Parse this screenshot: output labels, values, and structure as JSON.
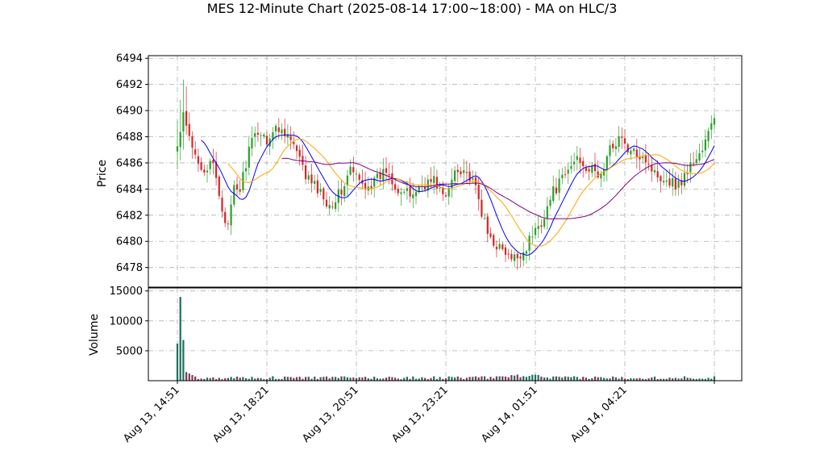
{
  "chart_data": {
    "type": "candlestick",
    "title": "MES 12-Minute Chart (2025-08-14 17:00~18:00) - MA on HLC/3",
    "price_panel": {
      "ylabel": "Price",
      "ylim": [
        6476.5,
        6494.2
      ],
      "yticks": [
        6478,
        6480,
        6482,
        6484,
        6486,
        6488,
        6490,
        6492,
        6494
      ],
      "grid": true
    },
    "volume_panel": {
      "ylabel": "Volume",
      "ylim": [
        0,
        15500
      ],
      "yticks": [
        5000,
        10000,
        15000
      ],
      "grid": true
    },
    "xaxis": {
      "tick_labels": [
        "Aug 13, 14:51",
        "Aug 13, 18:21",
        "Aug 13, 20:51",
        "Aug 13, 23:21",
        "Aug 14, 01:51",
        "Aug 14, 04:21"
      ],
      "tick_positions_bar_index": [
        0,
        30,
        60,
        90,
        120,
        150
      ],
      "label_rotation_deg": 45
    },
    "colors": {
      "up": "#2ca02c",
      "down": "#d62728",
      "up_volume": "#1f6f5f",
      "down_volume": "#7a3b5a",
      "ma_fast": "#0000ff",
      "ma_mid": "#ffa500",
      "ma_slow": "#800080"
    },
    "bar_count": 181,
    "ma_anchor_close": [
      [
        0,
        6487.2
      ],
      [
        2,
        6489.5
      ],
      [
        5,
        6487.0
      ],
      [
        9,
        6485.5
      ],
      [
        12,
        6485.8
      ],
      [
        15,
        6482.5
      ],
      [
        17,
        6481.0
      ],
      [
        19,
        6484.0
      ],
      [
        21,
        6484.0
      ],
      [
        24,
        6487.0
      ],
      [
        27,
        6488.5
      ],
      [
        30,
        6487.8
      ],
      [
        33,
        6488.6
      ],
      [
        36,
        6488.5
      ],
      [
        39,
        6487.3
      ],
      [
        43,
        6485.0
      ],
      [
        47,
        6484.0
      ],
      [
        51,
        6482.8
      ],
      [
        55,
        6483.8
      ],
      [
        58,
        6485.5
      ],
      [
        62,
        6484.3
      ],
      [
        66,
        6484.5
      ],
      [
        70,
        6485.5
      ],
      [
        74,
        6484.0
      ],
      [
        78,
        6483.5
      ],
      [
        82,
        6484.3
      ],
      [
        86,
        6484.7
      ],
      [
        90,
        6483.2
      ],
      [
        93,
        6485.5
      ],
      [
        96,
        6485.6
      ],
      [
        100,
        6484.0
      ],
      [
        104,
        6480.5
      ],
      [
        108,
        6479.5
      ],
      [
        112,
        6478.5
      ],
      [
        116,
        6479.2
      ],
      [
        119,
        6480.5
      ],
      [
        122,
        6481.5
      ],
      [
        126,
        6483.8
      ],
      [
        130,
        6485.0
      ],
      [
        134,
        6486.5
      ],
      [
        138,
        6485.5
      ],
      [
        142,
        6485.0
      ],
      [
        145,
        6487.0
      ],
      [
        148,
        6488.0
      ],
      [
        152,
        6486.7
      ],
      [
        156,
        6486.7
      ],
      [
        160,
        6485.2
      ],
      [
        164,
        6484.8
      ],
      [
        168,
        6484.3
      ],
      [
        172,
        6485.8
      ],
      [
        176,
        6487.0
      ],
      [
        180,
        6489.5
      ]
    ],
    "volume_spike": {
      "bar_index": 1,
      "value": 14000
    }
  }
}
